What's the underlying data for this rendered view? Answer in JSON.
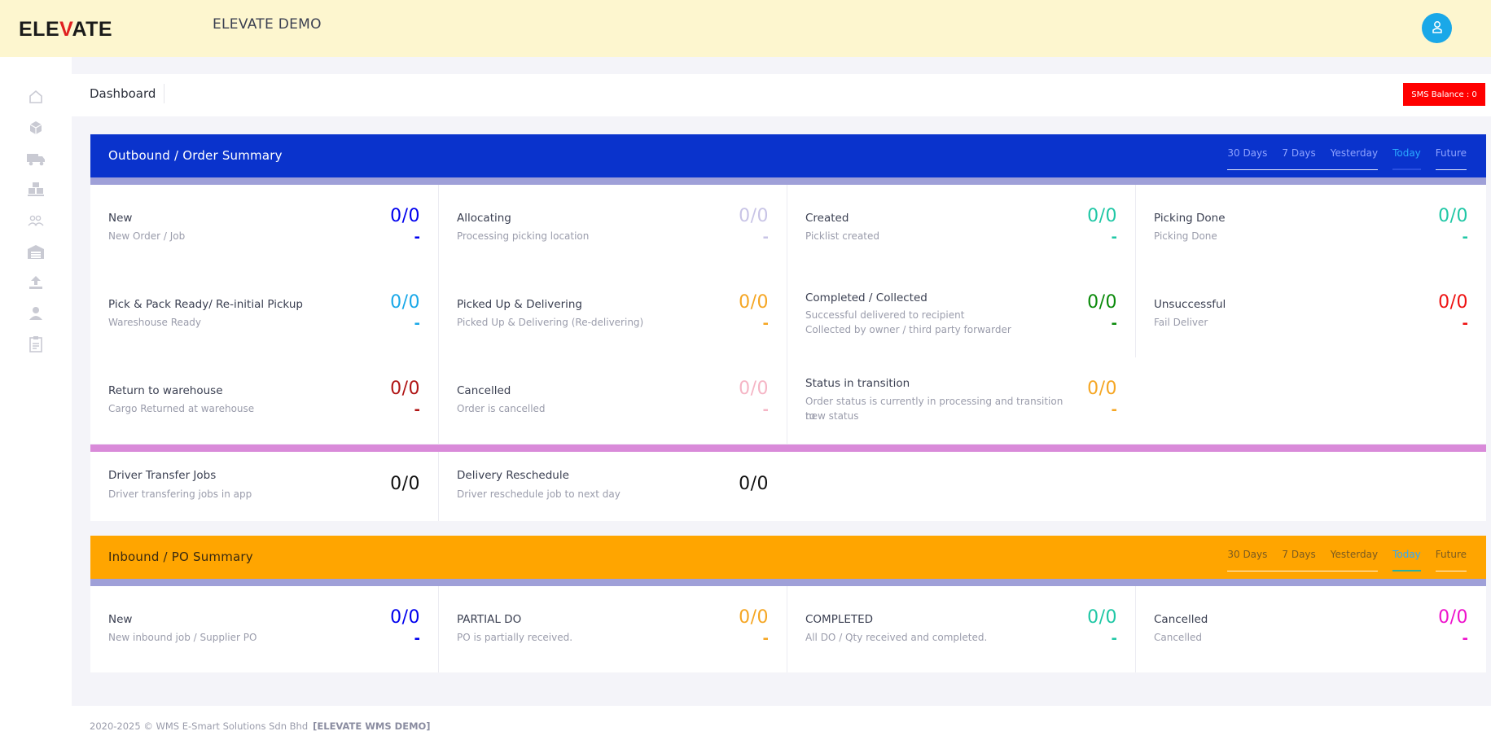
{
  "header": {
    "logo_text_1": "ELE",
    "logo_text_2": "V",
    "logo_text_3": "ATE",
    "app_title": "ELEVATE DEMO",
    "user_icon": "user-icon"
  },
  "sidebar": {
    "items": [
      {
        "icon": "home-icon"
      },
      {
        "icon": "box-icon"
      },
      {
        "icon": "truck-icon"
      },
      {
        "icon": "pallet-icon"
      },
      {
        "icon": "users-icon"
      },
      {
        "icon": "warehouse-icon"
      },
      {
        "icon": "upload-icon"
      },
      {
        "icon": "user-group-icon"
      },
      {
        "icon": "clipboard-icon"
      }
    ]
  },
  "page": {
    "title": "Dashboard",
    "sms_balance": "SMS Balance : 0"
  },
  "outbound": {
    "title": "Outbound / Order Summary",
    "header_color": "#0a33cc",
    "tabs": [
      "30 Days",
      "7 Days",
      "Yesterday",
      "Today",
      "Future"
    ],
    "active_tab": "Today",
    "cells": [
      {
        "title": "New",
        "sub1": "New Order / Job",
        "sub2": "",
        "value": "0/0",
        "dash": "-",
        "color": "#0000ee"
      },
      {
        "title": "Allocating",
        "sub1": "Processing picking location",
        "sub2": "",
        "value": "0/0",
        "dash": "-",
        "color": "#c8c4e6"
      },
      {
        "title": "Created",
        "sub1": "Picklist created",
        "sub2": "",
        "value": "0/0",
        "dash": "-",
        "color": "#1fc7a5"
      },
      {
        "title": "Picking Done",
        "sub1": "Picking Done",
        "sub2": "",
        "value": "0/0",
        "dash": "-",
        "color": "#1fc7a5"
      },
      {
        "title": "Pick & Pack Ready/ Re-initial Pickup",
        "sub1": "Wareshouse Ready",
        "sub2": "",
        "value": "0/0",
        "dash": "-",
        "color": "#1aa8e8"
      },
      {
        "title": "Picked Up & Delivering",
        "sub1": "Picked Up & Delivering (Re-delivering)",
        "sub2": "",
        "value": "0/0",
        "dash": "-",
        "color": "#f5a623"
      },
      {
        "title": "Completed / Collected",
        "sub1": "Successful delivered to recipient",
        "sub2": "Collected by owner / third party forwarder",
        "value": "0/0",
        "dash": "-",
        "color": "#0a8a0a"
      },
      {
        "title": "Unsuccessful",
        "sub1": "Fail Deliver",
        "sub2": "",
        "value": "0/0",
        "dash": "-",
        "color": "#ee1111"
      },
      {
        "title": "Return to warehouse",
        "sub1": "Cargo Returned at warehouse",
        "sub2": "",
        "value": "0/0",
        "dash": "-",
        "color": "#b01515"
      },
      {
        "title": "Cancelled",
        "sub1": "Order is cancelled",
        "sub2": "",
        "value": "0/0",
        "dash": "-",
        "color": "#f5b5c5"
      },
      {
        "title": "Status in transition",
        "sub1": "Order status is currently in processing and transition to",
        "sub2": "new status",
        "value": "0/0",
        "dash": "-",
        "color": "#f5a623"
      }
    ],
    "extra": [
      {
        "title": "Driver Transfer Jobs",
        "sub1": "Driver transfering jobs in app",
        "value": "0/0"
      },
      {
        "title": "Delivery Reschedule",
        "sub1": "Driver reschedule job to next day",
        "value": "0/0"
      }
    ]
  },
  "inbound": {
    "title": "Inbound / PO Summary",
    "header_color": "#ffa500",
    "tabs": [
      "30 Days",
      "7 Days",
      "Yesterday",
      "Today",
      "Future"
    ],
    "active_tab": "Today",
    "cells": [
      {
        "title": "New",
        "sub1": "New inbound job / Supplier PO",
        "value": "0/0",
        "dash": "-",
        "color": "#0000ee"
      },
      {
        "title": "PARTIAL DO",
        "sub1": "PO is partially received.",
        "value": "0/0",
        "dash": "-",
        "color": "#f5a623"
      },
      {
        "title": "COMPLETED",
        "sub1": "All DO / Qty received and completed.",
        "value": "0/0",
        "dash": "-",
        "color": "#1fc7a5"
      },
      {
        "title": "Cancelled",
        "sub1": "Cancelled",
        "value": "0/0",
        "dash": "-",
        "color": "#ee11cc"
      }
    ]
  },
  "footer": {
    "text": "2020-2025 © WMS  E-Smart Solutions Sdn Bhd",
    "strong": "[ELEVATE WMS DEMO]"
  }
}
